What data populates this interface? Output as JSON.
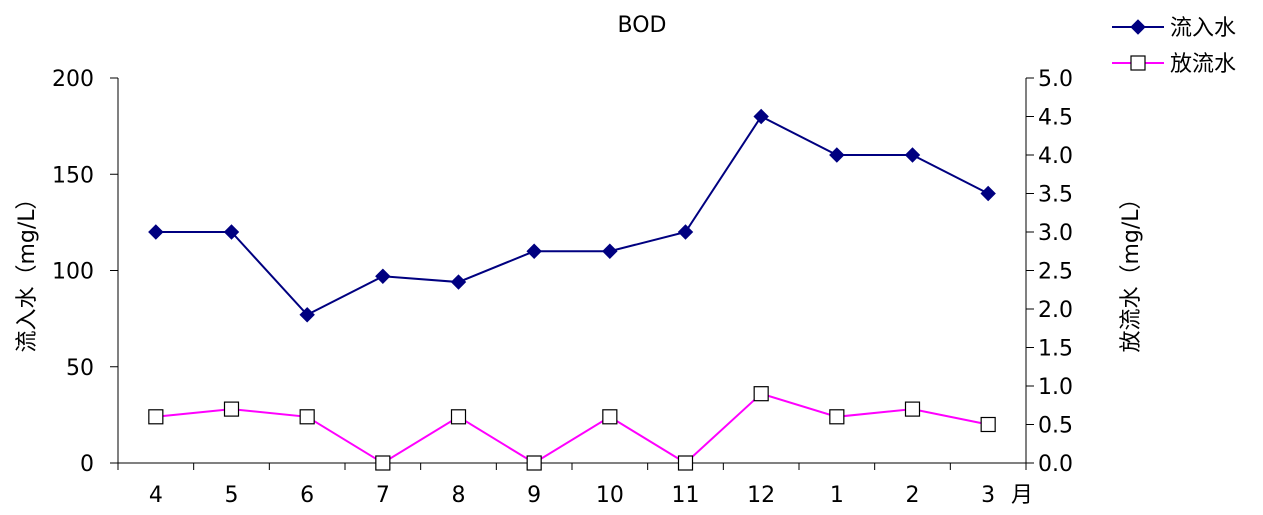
{
  "chart_data": {
    "type": "line",
    "title": "BOD",
    "categories": [
      "4",
      "5",
      "6",
      "7",
      "8",
      "9",
      "10",
      "11",
      "12",
      "1",
      "2",
      "3"
    ],
    "x_unit": "月",
    "y_left": {
      "label": "流入水（mg/L）",
      "range": [
        0,
        200
      ],
      "ticks": [
        "0",
        "50",
        "100",
        "150",
        "200"
      ],
      "tick_values": [
        0,
        50,
        100,
        150,
        200
      ]
    },
    "y_right": {
      "label": "放流水（mg/L）",
      "range": [
        0,
        5
      ],
      "ticks": [
        "0.0",
        "0.5",
        "1.0",
        "1.5",
        "2.0",
        "2.5",
        "3.0",
        "3.5",
        "4.0",
        "4.5",
        "5.0"
      ],
      "tick_values": [
        0,
        0.5,
        1,
        1.5,
        2,
        2.5,
        3,
        3.5,
        4,
        4.5,
        5
      ]
    },
    "series": [
      {
        "name": "流入水",
        "axis": "left",
        "color": "#000080",
        "marker": "diamond",
        "values": [
          120,
          120,
          77,
          97,
          94,
          110,
          110,
          120,
          180,
          160,
          160,
          140
        ]
      },
      {
        "name": "放流水",
        "axis": "right",
        "color": "#FF00FF",
        "marker": "square-open",
        "values": [
          0.6,
          0.7,
          0.6,
          0.0,
          0.6,
          0.0,
          0.6,
          0.0,
          0.9,
          0.6,
          0.7,
          0.5
        ]
      }
    ],
    "legend_position": "top-right",
    "grid": false
  }
}
